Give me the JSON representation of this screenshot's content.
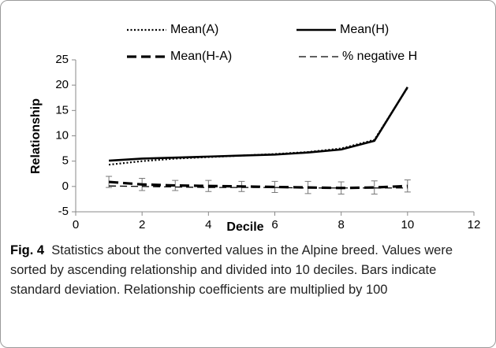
{
  "chart_data": {
    "type": "line",
    "xlabel": "Decile",
    "ylabel": "Relationship",
    "x": [
      1,
      2,
      3,
      4,
      5,
      6,
      7,
      8,
      9,
      10
    ],
    "xlim": [
      0,
      12
    ],
    "xticks": [
      0,
      2,
      4,
      6,
      8,
      10,
      12
    ],
    "ylim": [
      -5,
      25
    ],
    "yticks": [
      -5,
      0,
      5,
      10,
      15,
      20,
      25
    ],
    "series": [
      {
        "name": "Mean(A)",
        "color": "#000000",
        "style": "dotted",
        "values": [
          4.3,
          5.0,
          5.5,
          5.8,
          6.1,
          6.4,
          6.8,
          7.5,
          9.2,
          19.5
        ]
      },
      {
        "name": "Mean(H)",
        "color": "#000000",
        "style": "solid",
        "values": [
          5.1,
          5.5,
          5.7,
          5.9,
          6.1,
          6.3,
          6.7,
          7.3,
          9.0,
          19.6
        ]
      },
      {
        "name": "Mean(H-A)",
        "color": "#000000",
        "style": "dashed-thick",
        "values": [
          0.9,
          0.4,
          0.2,
          0.1,
          0.0,
          -0.1,
          -0.2,
          -0.3,
          -0.2,
          0.1
        ],
        "errors": [
          1.1,
          1.2,
          1.0,
          1.1,
          1.0,
          1.1,
          1.2,
          1.2,
          1.3,
          1.2
        ]
      },
      {
        "name": "% negative H",
        "color": "#000000",
        "style": "dashed",
        "values": [
          0.1,
          0.0,
          -0.1,
          -0.2,
          -0.2,
          -0.2,
          -0.3,
          -0.3,
          -0.3,
          -0.3
        ]
      }
    ]
  },
  "caption": {
    "label": "Fig. 4",
    "text": "Statistics about the converted values in the Alpine breed. Values were sorted by ascending relationship and divided into 10 deciles. Bars indicate standard deviation. Relationship coefficients are multiplied by 100"
  }
}
